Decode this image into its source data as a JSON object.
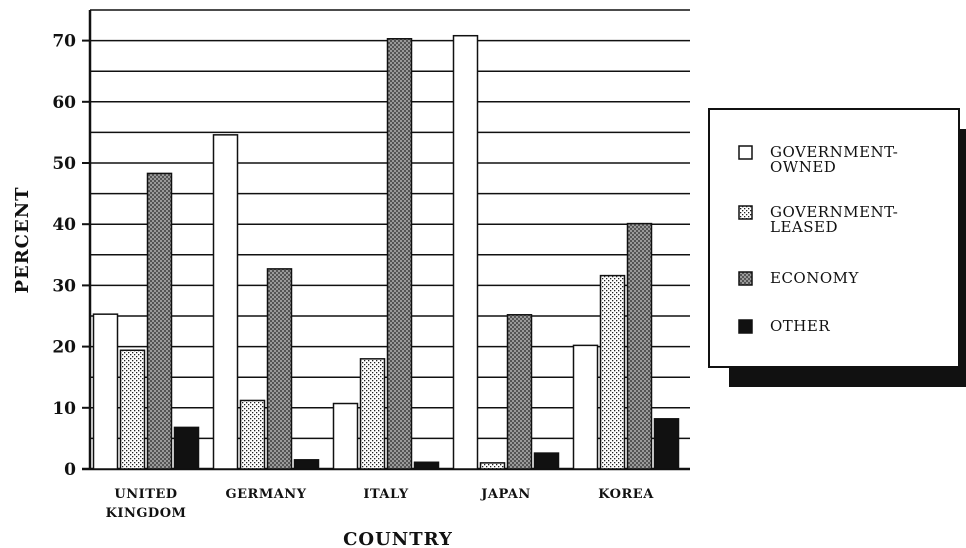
{
  "chart_data": {
    "type": "bar",
    "title": "",
    "xlabel": "COUNTRY",
    "ylabel": "PERCENT",
    "ylim": [
      0,
      75
    ],
    "yticks": [
      0,
      10,
      20,
      30,
      40,
      50,
      60,
      70
    ],
    "grid": true,
    "legend_position": "right",
    "categories": [
      [
        "UNITED",
        "KINGDOM"
      ],
      [
        "GERMANY"
      ],
      [
        "ITALY"
      ],
      [
        "JAPAN"
      ],
      [
        "KOREA"
      ]
    ],
    "series": [
      {
        "name": [
          "GOVERNMENT-",
          "OWNED"
        ],
        "pattern": "white",
        "values": [
          25.3,
          54.6,
          10.7,
          70.8,
          20.2
        ]
      },
      {
        "name": [
          "GOVERNMENT-",
          "LEASED"
        ],
        "pattern": "dots",
        "values": [
          19.4,
          11.2,
          18.0,
          1.0,
          31.6
        ]
      },
      {
        "name": [
          "ECONOMY"
        ],
        "pattern": "checker",
        "values": [
          48.3,
          32.7,
          70.3,
          25.2,
          40.1
        ]
      },
      {
        "name": [
          "OTHER"
        ],
        "pattern": "black",
        "values": [
          6.8,
          1.5,
          1.1,
          2.6,
          8.2
        ]
      }
    ],
    "colors": {
      "bar_outline": "#111111",
      "fill_white": "#ffffff",
      "fill_black": "#111111"
    }
  }
}
